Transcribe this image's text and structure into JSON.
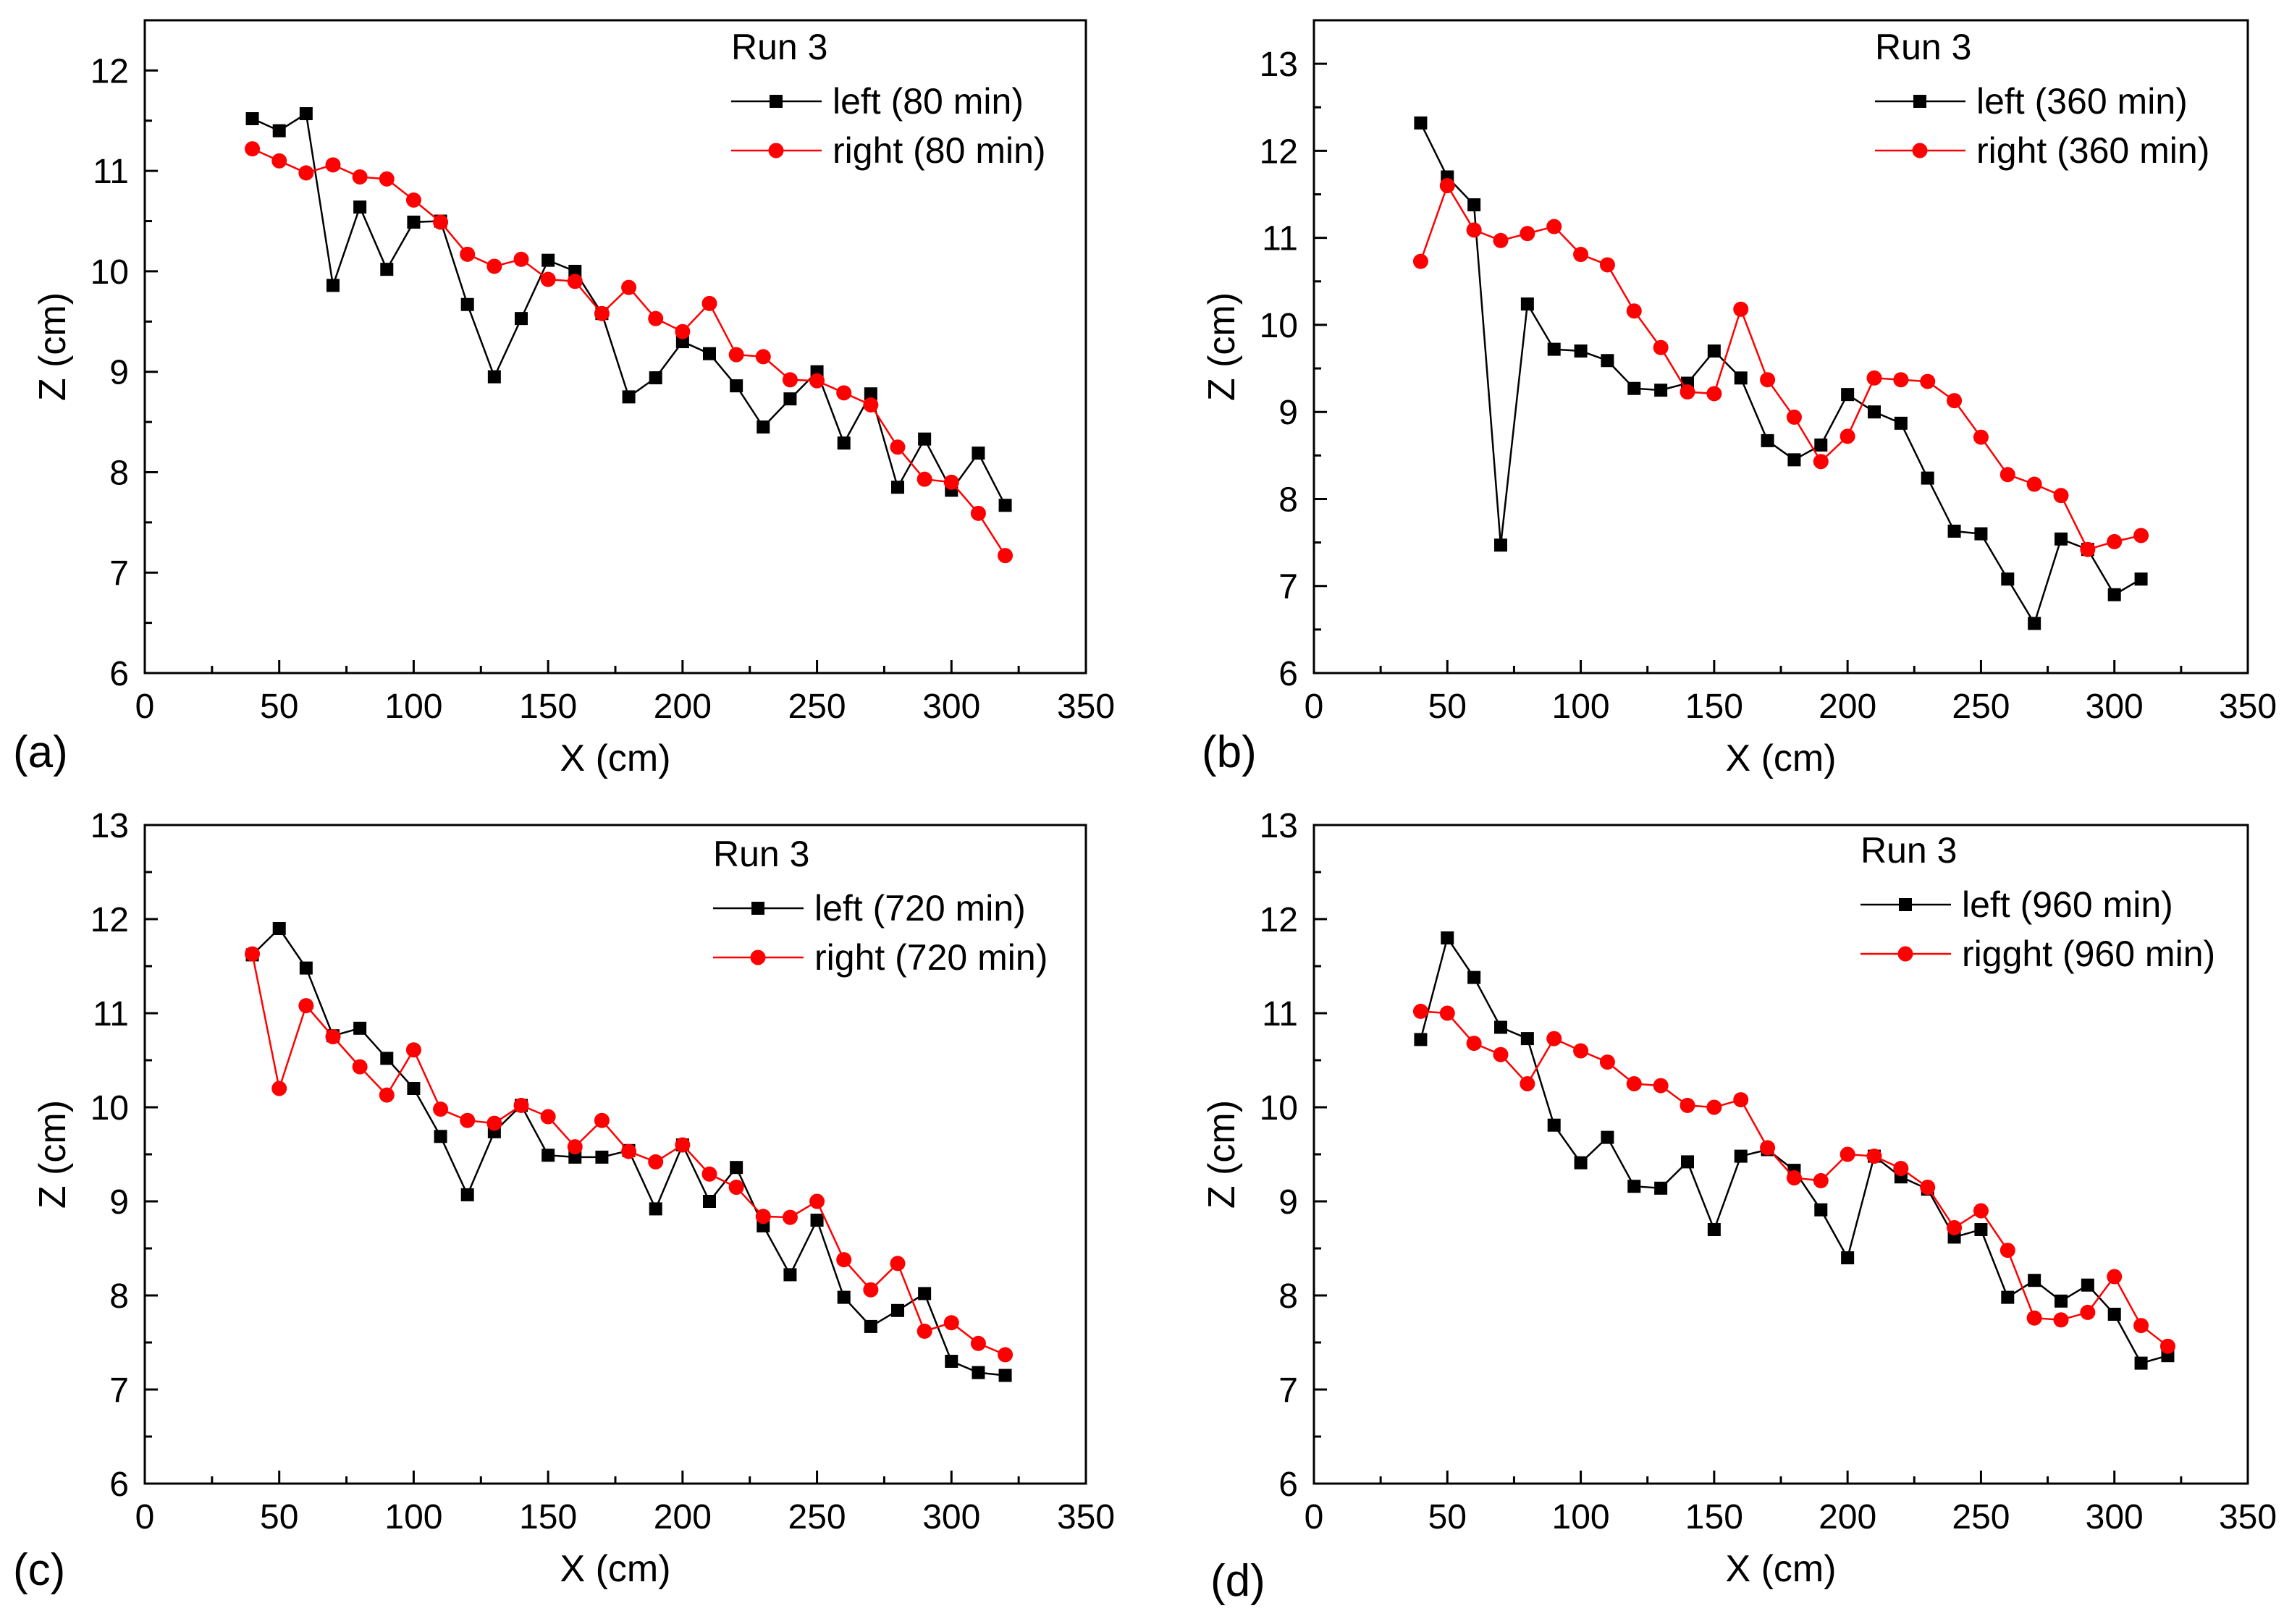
{
  "colors": {
    "left": "#000000",
    "right": "#ff0000",
    "axis": "#000000",
    "background": "#ffffff"
  },
  "chart_data": [
    {
      "type": "line",
      "panel_label": "(a)",
      "xlabel": "X (cm)",
      "ylabel": "Z (cm)",
      "xlim": [
        0,
        350
      ],
      "ylim": [
        6,
        12.5
      ],
      "xticks": [
        "0",
        "50",
        "100",
        "150",
        "200",
        "250",
        "300",
        "350"
      ],
      "yticks": [
        "6",
        "7",
        "8",
        "9",
        "10",
        "11",
        "12"
      ],
      "legend_title": "Run 3",
      "legend_position": "top-right",
      "x": [
        40,
        50,
        60,
        70,
        80,
        90,
        100,
        110,
        120,
        130,
        140,
        150,
        160,
        170,
        180,
        190,
        200,
        210,
        220,
        230,
        240,
        250,
        260,
        270,
        280,
        290,
        300,
        310,
        320
      ],
      "series": [
        {
          "name": "left (80 min)",
          "marker": "square",
          "color": "#000000",
          "values": [
            11.52,
            11.4,
            11.57,
            9.86,
            10.64,
            10.02,
            10.49,
            10.5,
            9.67,
            8.95,
            9.53,
            10.11,
            10.0,
            9.58,
            8.75,
            8.94,
            9.3,
            9.18,
            8.86,
            8.45,
            8.73,
            9.0,
            8.29,
            8.78,
            7.85,
            8.33,
            7.82,
            8.19,
            7.67
          ]
        },
        {
          "name": "right (80 min)",
          "marker": "circle",
          "color": "#ff0000",
          "values": [
            11.22,
            11.1,
            10.98,
            11.06,
            10.94,
            10.92,
            10.71,
            10.49,
            10.17,
            10.05,
            10.12,
            9.92,
            9.9,
            9.58,
            9.84,
            9.53,
            9.4,
            9.68,
            9.17,
            9.15,
            8.92,
            8.91,
            8.79,
            8.67,
            8.25,
            7.93,
            7.9,
            7.59,
            7.17
          ]
        }
      ]
    },
    {
      "type": "line",
      "panel_label": "(b)",
      "xlabel": "X (cm)",
      "ylabel": "Z (cm)",
      "xlim": [
        0,
        350
      ],
      "ylim": [
        6,
        13.5
      ],
      "xticks": [
        "0",
        "50",
        "100",
        "150",
        "200",
        "250",
        "300",
        "350"
      ],
      "yticks": [
        "6",
        "7",
        "8",
        "9",
        "10",
        "11",
        "12",
        "13"
      ],
      "legend_title": "Run 3",
      "legend_position": "top-right",
      "x": [
        40,
        50,
        60,
        70,
        80,
        90,
        100,
        110,
        120,
        130,
        140,
        150,
        160,
        170,
        180,
        190,
        200,
        210,
        220,
        230,
        240,
        250,
        260,
        270,
        280,
        290,
        300,
        310
      ],
      "series": [
        {
          "name": "left (360 min)",
          "marker": "square",
          "color": "#000000",
          "values": [
            12.32,
            11.7,
            11.38,
            7.47,
            10.24,
            9.72,
            9.7,
            9.59,
            9.27,
            9.25,
            9.33,
            9.7,
            9.39,
            8.67,
            8.45,
            8.62,
            9.2,
            9.0,
            8.87,
            8.24,
            7.63,
            7.6,
            7.08,
            6.57,
            7.54,
            7.42,
            6.9,
            7.08
          ]
        },
        {
          "name": "right (360 min)",
          "marker": "circle",
          "color": "#ff0000",
          "values": [
            10.73,
            11.6,
            11.09,
            10.97,
            11.05,
            11.13,
            10.81,
            10.69,
            10.16,
            9.74,
            9.23,
            9.21,
            10.18,
            9.37,
            8.94,
            8.43,
            8.72,
            9.39,
            9.37,
            9.35,
            9.13,
            8.71,
            8.28,
            8.17,
            8.04,
            7.42,
            7.51,
            7.58
          ]
        }
      ]
    },
    {
      "type": "line",
      "panel_label": "(c)",
      "xlabel": "X (cm)",
      "ylabel": "Z (cm)",
      "xlim": [
        0,
        350
      ],
      "ylim": [
        6,
        13
      ],
      "xticks": [
        "0",
        "50",
        "100",
        "150",
        "200",
        "250",
        "300",
        "350"
      ],
      "yticks": [
        "6",
        "7",
        "8",
        "9",
        "10",
        "11",
        "12",
        "13"
      ],
      "legend_title": "Run 3",
      "legend_position": "top-right",
      "x": [
        40,
        50,
        60,
        70,
        80,
        90,
        100,
        110,
        120,
        130,
        140,
        150,
        160,
        170,
        180,
        190,
        200,
        210,
        220,
        230,
        240,
        250,
        260,
        270,
        280,
        290,
        300,
        310,
        320
      ],
      "series": [
        {
          "name": "left (720 min)",
          "marker": "square",
          "color": "#000000",
          "values": [
            11.62,
            11.9,
            11.48,
            10.76,
            10.84,
            10.52,
            10.2,
            9.69,
            9.07,
            9.74,
            10.02,
            9.49,
            9.47,
            9.47,
            9.54,
            8.92,
            9.6,
            9.0,
            9.36,
            8.74,
            8.22,
            8.8,
            7.98,
            7.67,
            7.84,
            8.02,
            7.3,
            7.18,
            7.15
          ]
        },
        {
          "name": "right (720 min)",
          "marker": "circle",
          "color": "#ff0000",
          "values": [
            11.63,
            10.2,
            11.08,
            10.75,
            10.43,
            10.13,
            10.61,
            9.98,
            9.86,
            9.83,
            10.02,
            9.9,
            9.58,
            9.86,
            9.53,
            9.42,
            9.6,
            9.29,
            9.15,
            8.84,
            8.83,
            9.0,
            8.38,
            8.06,
            8.34,
            7.62,
            7.71,
            7.49,
            7.37
          ]
        }
      ]
    },
    {
      "type": "line",
      "panel_label": "(d)",
      "xlabel": "X (cm)",
      "ylabel": "Z (cm)",
      "xlim": [
        0,
        350
      ],
      "ylim": [
        6,
        13
      ],
      "xticks": [
        "0",
        "50",
        "100",
        "150",
        "200",
        "250",
        "300",
        "350"
      ],
      "yticks": [
        "6",
        "7",
        "8",
        "9",
        "10",
        "11",
        "12",
        "13"
      ],
      "legend_title": "Run 3",
      "legend_position": "top-right",
      "x": [
        40,
        50,
        60,
        70,
        80,
        90,
        100,
        110,
        120,
        130,
        140,
        150,
        160,
        170,
        180,
        190,
        200,
        210,
        220,
        230,
        240,
        250,
        260,
        270,
        280,
        290,
        300,
        310,
        320
      ],
      "series": [
        {
          "name": "left (960 min)",
          "marker": "square",
          "color": "#000000",
          "values": [
            10.72,
            11.8,
            11.38,
            10.85,
            10.73,
            9.81,
            9.41,
            9.68,
            9.16,
            9.14,
            9.42,
            8.7,
            9.48,
            9.55,
            9.33,
            8.91,
            8.4,
            9.48,
            9.26,
            9.13,
            8.62,
            8.7,
            7.98,
            8.16,
            7.94,
            8.11,
            7.8,
            7.28,
            7.36
          ]
        },
        {
          "name": "rigght (960 min)",
          "marker": "circle",
          "color": "#ff0000",
          "values": [
            11.02,
            11.0,
            10.68,
            10.56,
            10.25,
            10.73,
            10.6,
            10.48,
            10.25,
            10.23,
            10.02,
            10.0,
            10.08,
            9.57,
            9.25,
            9.22,
            9.5,
            9.48,
            9.35,
            9.15,
            8.72,
            8.9,
            8.48,
            7.76,
            7.74,
            7.82,
            8.2,
            7.68,
            7.46
          ]
        }
      ]
    }
  ]
}
